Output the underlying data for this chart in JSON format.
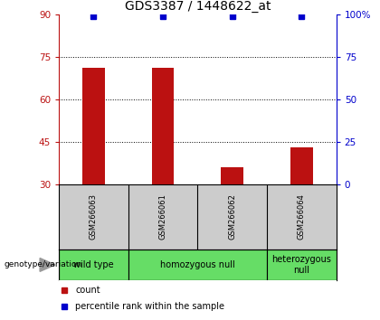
{
  "title": "GDS3387 / 1448622_at",
  "samples": [
    "GSM266063",
    "GSM266061",
    "GSM266062",
    "GSM266064"
  ],
  "bar_values": [
    71,
    71,
    36,
    43
  ],
  "bar_bottom": 30,
  "percentile_values": [
    99,
    99,
    99,
    99
  ],
  "ylim_left": [
    30,
    90
  ],
  "ylim_right": [
    0,
    100
  ],
  "yticks_left": [
    30,
    45,
    60,
    75,
    90
  ],
  "yticks_right": [
    0,
    25,
    50,
    75,
    100
  ],
  "bar_color": "#bb1111",
  "percentile_color": "#0000cc",
  "grid_lines": [
    45,
    60,
    75
  ],
  "group_defs": [
    {
      "start": 0,
      "end": 0,
      "label": "wild type"
    },
    {
      "start": 1,
      "end": 2,
      "label": "homozygous null"
    },
    {
      "start": 3,
      "end": 3,
      "label": "heterozygous\nnull"
    }
  ],
  "sample_label_area_color": "#cccccc",
  "green_color": "#66dd66",
  "group_label": "genotype/variation",
  "legend_count_label": "count",
  "legend_percentile_label": "percentile rank within the sample",
  "title_fontsize": 10,
  "tick_fontsize": 7.5,
  "sample_fontsize": 6,
  "group_fontsize": 7
}
